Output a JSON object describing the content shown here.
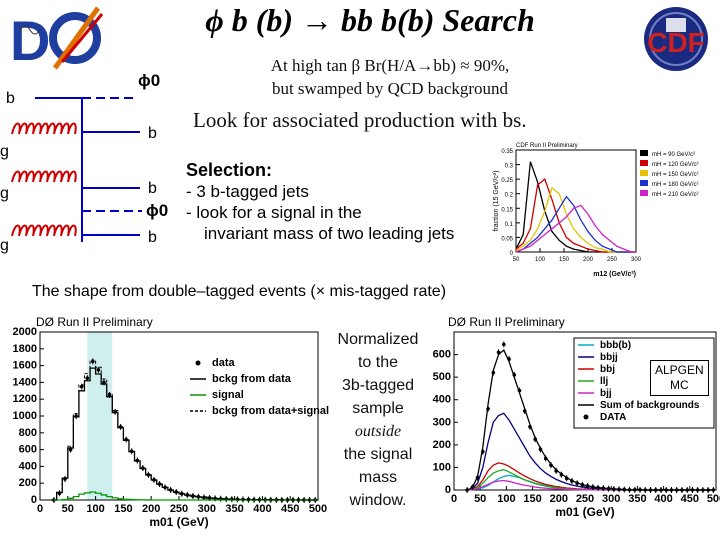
{
  "title": "ϕ b (b) → bb b(b) Search",
  "intro": {
    "line1": "At high tan β Br(H/A→bb) ≈ 90%,",
    "line2": "but swamped by QCD background"
  },
  "look_text": "Look for associated production with bs.",
  "selection": {
    "heading": "Selection:",
    "item1": "- 3 b-tagged jets",
    "item2": "- look for a signal in the",
    "item3": "invariant mass of two leading jets"
  },
  "shape_text": "The shape from double–tagged events (× mis-tagged rate)",
  "normalized_note": {
    "line1": "Normalized",
    "line2": "to the",
    "line3": "3b-tagged",
    "line4": "sample",
    "line5": "outside",
    "line6": "the signal",
    "line7": "mass",
    "line8": "window."
  },
  "alpgen_box": {
    "line1": "ALPGEN",
    "line2": "MC"
  },
  "feynman": {
    "phi_top": "ϕ0",
    "phi_bottom": "ϕ0",
    "b_left": "b",
    "b1": "b",
    "b2": "b",
    "b3": "b",
    "g1": "g",
    "g2": "g",
    "g3": "g"
  },
  "colors": {
    "signal_band": "#cfeeee",
    "accent_red": "#cc0000"
  },
  "icons": [
    "d0-logo",
    "cdf-logo"
  ],
  "chart_data": [
    {
      "type": "line",
      "title": "CDF Run II Preliminary",
      "xlabel": "m12 (GeV/c²)",
      "ylabel": "fraction (15 GeV/c²)",
      "xlim": [
        50,
        300
      ],
      "ylim": [
        0,
        0.35
      ],
      "xticks": [
        50,
        100,
        150,
        200,
        250,
        300
      ],
      "yticks": [
        0,
        0.05,
        0.1,
        0.15,
        0.2,
        0.25,
        0.3,
        0.35
      ],
      "legend_position": "top-right",
      "x": [
        50,
        65,
        80,
        95,
        110,
        125,
        140,
        155,
        170,
        185,
        200,
        215,
        230,
        245,
        260,
        275,
        290,
        300
      ],
      "series": [
        {
          "name": "mH = 90 GeV/c²",
          "color": "#000000",
          "values": [
            0.01,
            0.06,
            0.31,
            0.24,
            0.14,
            0.07,
            0.04,
            0.02,
            0.01,
            0.005,
            0,
            0,
            0,
            0,
            0,
            0,
            0,
            0
          ]
        },
        {
          "name": "mH = 120 GeV/c²",
          "color": "#cc0000",
          "values": [
            0.01,
            0.03,
            0.08,
            0.23,
            0.25,
            0.18,
            0.1,
            0.05,
            0.03,
            0.02,
            0.01,
            0.005,
            0,
            0,
            0,
            0,
            0,
            0
          ]
        },
        {
          "name": "mH = 150 GeV/c²",
          "color": "#e6c200",
          "values": [
            0.005,
            0.02,
            0.04,
            0.08,
            0.14,
            0.22,
            0.2,
            0.13,
            0.08,
            0.05,
            0.03,
            0.015,
            0.01,
            0,
            0,
            0,
            0,
            0
          ]
        },
        {
          "name": "mH = 180 GeV/c²",
          "color": "#1a33cc",
          "values": [
            0,
            0.01,
            0.03,
            0.05,
            0.08,
            0.11,
            0.15,
            0.19,
            0.16,
            0.11,
            0.07,
            0.04,
            0.02,
            0.01,
            0,
            0,
            0,
            0
          ]
        },
        {
          "name": "mH = 210 GeV/c²",
          "color": "#cc22cc",
          "values": [
            0,
            0.01,
            0.02,
            0.04,
            0.06,
            0.08,
            0.1,
            0.12,
            0.15,
            0.16,
            0.13,
            0.09,
            0.06,
            0.04,
            0.02,
            0.01,
            0,
            0
          ]
        }
      ]
    },
    {
      "type": "line",
      "title": "DØ Run II Preliminary",
      "xlabel": "m01 (GeV)",
      "ylabel": "",
      "xlim": [
        0,
        500
      ],
      "ylim": [
        0,
        2000
      ],
      "xticks": [
        0,
        50,
        100,
        150,
        200,
        250,
        300,
        350,
        400,
        450,
        500
      ],
      "yticks": [
        0,
        200,
        400,
        600,
        800,
        1000,
        1200,
        1400,
        1600,
        1800,
        2000
      ],
      "signal_window": [
        85,
        130
      ],
      "legend_position": "top-right",
      "x": [
        25,
        35,
        45,
        55,
        65,
        75,
        85,
        95,
        105,
        115,
        125,
        135,
        145,
        155,
        165,
        175,
        185,
        195,
        205,
        215,
        225,
        235,
        245,
        255,
        265,
        275,
        285,
        295,
        305,
        315,
        325,
        335,
        345,
        355,
        365,
        375,
        385,
        395,
        405,
        415,
        425,
        435,
        445,
        455,
        465,
        475,
        485,
        495
      ],
      "series": [
        {
          "name": "data",
          "style": "points",
          "values": [
            0,
            80,
            250,
            600,
            1000,
            1350,
            1450,
            1650,
            1550,
            1400,
            1250,
            1050,
            870,
            720,
            580,
            470,
            380,
            300,
            240,
            190,
            150,
            120,
            95,
            75,
            60,
            48,
            38,
            30,
            24,
            19,
            15,
            12,
            10,
            8,
            6,
            5,
            4,
            3,
            3,
            2,
            2,
            1,
            1,
            1,
            1,
            1,
            0,
            0
          ]
        },
        {
          "name": "bckg from data",
          "style": "histogram",
          "values": [
            0,
            90,
            260,
            620,
            990,
            1300,
            1420,
            1570,
            1500,
            1380,
            1230,
            1040,
            860,
            710,
            575,
            465,
            375,
            300,
            238,
            188,
            150,
            118,
            93,
            74,
            59,
            47,
            37,
            29,
            23,
            18,
            14,
            11,
            9,
            7,
            6,
            5,
            4,
            3,
            3,
            2,
            2,
            1,
            1,
            1,
            1,
            1,
            0,
            0
          ]
        },
        {
          "name": "signal",
          "style": "histogram",
          "values": [
            0,
            0,
            5,
            20,
            40,
            70,
            85,
            95,
            80,
            60,
            40,
            25,
            15,
            8,
            5,
            3,
            2,
            1,
            0,
            0,
            0,
            0,
            0,
            0,
            0,
            0,
            0,
            0,
            0,
            0,
            0,
            0,
            0,
            0,
            0,
            0,
            0,
            0,
            0,
            0,
            0,
            0,
            0,
            0,
            0,
            0,
            0,
            0
          ]
        },
        {
          "name": "bckg from data+signal",
          "style": "dashed",
          "values": [
            0,
            90,
            265,
            640,
            1030,
            1370,
            1505,
            1665,
            1580,
            1440,
            1270,
            1065,
            875,
            718,
            580,
            468,
            377,
            301,
            238,
            188,
            150,
            118,
            93,
            74,
            59,
            47,
            37,
            29,
            23,
            18,
            14,
            11,
            9,
            7,
            6,
            5,
            4,
            3,
            3,
            2,
            2,
            1,
            1,
            1,
            1,
            1,
            0,
            0
          ]
        }
      ]
    },
    {
      "type": "line",
      "title": "DØ Run II Preliminary",
      "xlabel": "m01 (GeV)",
      "ylabel": "",
      "xlim": [
        0,
        500
      ],
      "ylim": [
        0,
        700
      ],
      "xticks": [
        0,
        50,
        100,
        150,
        200,
        250,
        300,
        350,
        400,
        450,
        500
      ],
      "yticks": [
        0,
        100,
        200,
        300,
        400,
        500,
        600
      ],
      "legend_position": "top-right",
      "x": [
        25,
        35,
        45,
        55,
        65,
        75,
        85,
        95,
        105,
        115,
        125,
        135,
        145,
        155,
        165,
        175,
        185,
        195,
        205,
        215,
        225,
        235,
        245,
        255,
        265,
        275,
        285,
        295,
        305,
        315,
        325,
        335,
        345,
        355,
        365,
        375,
        385,
        395,
        405,
        415,
        425,
        435,
        445,
        455,
        465,
        475,
        485,
        495
      ],
      "series": [
        {
          "name": "bbb(b)",
          "color": "#00aacc",
          "values": [
            0,
            2,
            5,
            10,
            20,
            35,
            50,
            60,
            65,
            60,
            55,
            45,
            38,
            30,
            25,
            20,
            16,
            12,
            10,
            8,
            6,
            5,
            4,
            3,
            2,
            2,
            1,
            1,
            1,
            1,
            0,
            0,
            0,
            0,
            0,
            0,
            0,
            0,
            0,
            0,
            0,
            0,
            0,
            0,
            0,
            0,
            0,
            0
          ]
        },
        {
          "name": "bbjj",
          "color": "#000080",
          "values": [
            0,
            5,
            30,
            100,
            210,
            300,
            330,
            340,
            310,
            270,
            230,
            190,
            150,
            120,
            95,
            75,
            60,
            47,
            37,
            29,
            22,
            17,
            13,
            10,
            8,
            6,
            5,
            4,
            3,
            2,
            2,
            1,
            1,
            1,
            0,
            0,
            0,
            0,
            0,
            0,
            0,
            0,
            0,
            0,
            0,
            0,
            0,
            0
          ]
        },
        {
          "name": "bbj",
          "color": "#cc0000",
          "values": [
            0,
            3,
            15,
            45,
            85,
            110,
            120,
            115,
            105,
            90,
            75,
            62,
            50,
            40,
            32,
            25,
            20,
            15,
            12,
            9,
            7,
            5,
            4,
            3,
            2,
            2,
            1,
            1,
            1,
            0,
            0,
            0,
            0,
            0,
            0,
            0,
            0,
            0,
            0,
            0,
            0,
            0,
            0,
            0,
            0,
            0,
            0,
            0
          ]
        },
        {
          "name": "llj",
          "color": "#22aa22",
          "values": [
            0,
            2,
            10,
            30,
            55,
            75,
            85,
            90,
            80,
            68,
            56,
            45,
            36,
            28,
            22,
            17,
            13,
            10,
            8,
            6,
            4,
            3,
            2,
            2,
            1,
            1,
            1,
            0,
            0,
            0,
            0,
            0,
            0,
            0,
            0,
            0,
            0,
            0,
            0,
            0,
            0,
            0,
            0,
            0,
            0,
            0,
            0,
            0
          ]
        },
        {
          "name": "bjj",
          "color": "#cc22cc",
          "values": [
            0,
            1,
            5,
            15,
            25,
            35,
            40,
            42,
            38,
            32,
            26,
            21,
            17,
            13,
            10,
            8,
            6,
            5,
            4,
            3,
            2,
            2,
            1,
            1,
            1,
            0,
            0,
            0,
            0,
            0,
            0,
            0,
            0,
            0,
            0,
            0,
            0,
            0,
            0,
            0,
            0,
            0,
            0,
            0,
            0,
            0,
            0,
            0
          ]
        },
        {
          "name": "Sum of backgrounds",
          "color": "#000000",
          "values": [
            0,
            10,
            60,
            190,
            380,
            530,
            600,
            620,
            570,
            500,
            430,
            360,
            290,
            230,
            184,
            145,
            115,
            89,
            71,
            55,
            41,
            32,
            24,
            19,
            14,
            11,
            8,
            6,
            5,
            3,
            2,
            1,
            1,
            1,
            0,
            0,
            0,
            0,
            0,
            0,
            0,
            0,
            0,
            0,
            0,
            0,
            0,
            0
          ]
        },
        {
          "name": "DATA",
          "color": "#000000",
          "style": "points",
          "values": [
            0,
            12,
            55,
            170,
            360,
            520,
            610,
            645,
            580,
            510,
            440,
            350,
            280,
            225,
            180,
            140,
            110,
            85,
            68,
            52,
            40,
            30,
            23,
            18,
            13,
            10,
            8,
            6,
            4,
            3,
            2,
            1,
            1,
            1,
            0,
            0,
            0,
            0,
            0,
            0,
            0,
            0,
            0,
            0,
            0,
            0,
            0,
            0
          ]
        }
      ]
    }
  ]
}
